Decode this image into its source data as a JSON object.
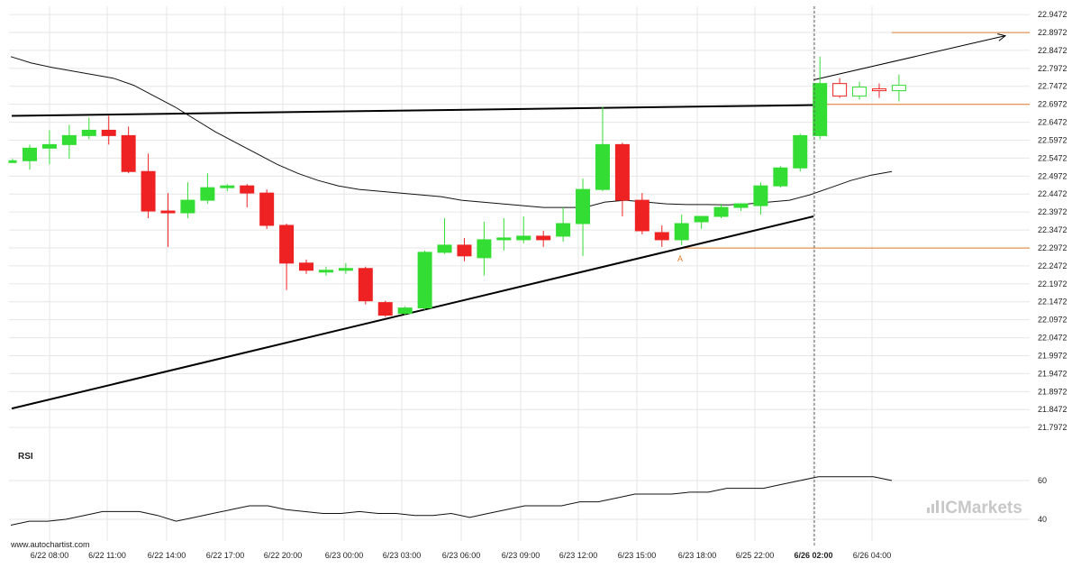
{
  "chart_data": {
    "type": "candlestick",
    "title": "",
    "y_ticks": [
      "22.9472",
      "22.8972",
      "22.8472",
      "22.7972",
      "22.7472",
      "22.6972",
      "22.6472",
      "22.5972",
      "22.5472",
      "22.4972",
      "22.4472",
      "22.3972",
      "22.3472",
      "22.2972",
      "22.2472",
      "22.1972",
      "22.1472",
      "22.0972",
      "22.0472",
      "21.9972",
      "21.9472",
      "21.8972",
      "21.8472",
      "21.7972"
    ],
    "ylim": [
      21.77,
      22.97
    ],
    "x_ticks": [
      "6/22 08:00",
      "6/22 11:00",
      "6/22 14:00",
      "6/22 17:00",
      "6/22 20:00",
      "6/23 00:00",
      "6/23 03:00",
      "6/23 06:00",
      "6/23 09:00",
      "6/23 12:00",
      "6/23 15:00",
      "6/23 18:00",
      "6/25 22:00",
      "6/26 02:00",
      "6/26 04:00"
    ],
    "x_ticks_bold": "6/26 02:00",
    "candles": [
      {
        "o": 22.54,
        "h": 22.545,
        "l": 22.535,
        "c": 22.54
      },
      {
        "o": 22.54,
        "h": 22.585,
        "l": 22.515,
        "c": 22.575
      },
      {
        "o": 22.575,
        "h": 22.625,
        "l": 22.53,
        "c": 22.585
      },
      {
        "o": 22.585,
        "h": 22.64,
        "l": 22.545,
        "c": 22.61
      },
      {
        "o": 22.61,
        "h": 22.66,
        "l": 22.6,
        "c": 22.625
      },
      {
        "o": 22.625,
        "h": 22.665,
        "l": 22.585,
        "c": 22.61
      },
      {
        "o": 22.61,
        "h": 22.635,
        "l": 22.505,
        "c": 22.51
      },
      {
        "o": 22.51,
        "h": 22.56,
        "l": 22.38,
        "c": 22.4
      },
      {
        "o": 22.4,
        "h": 22.45,
        "l": 22.3,
        "c": 22.395
      },
      {
        "o": 22.395,
        "h": 22.48,
        "l": 22.38,
        "c": 22.43
      },
      {
        "o": 22.43,
        "h": 22.505,
        "l": 22.42,
        "c": 22.465
      },
      {
        "o": 22.465,
        "h": 22.475,
        "l": 22.455,
        "c": 22.47
      },
      {
        "o": 22.47,
        "h": 22.475,
        "l": 22.41,
        "c": 22.45
      },
      {
        "o": 22.45,
        "h": 22.46,
        "l": 22.35,
        "c": 22.36
      },
      {
        "o": 22.36,
        "h": 22.365,
        "l": 22.18,
        "c": 22.255
      },
      {
        "o": 22.255,
        "h": 22.265,
        "l": 22.225,
        "c": 22.235
      },
      {
        "o": 22.23,
        "h": 22.245,
        "l": 22.22,
        "c": 22.235
      },
      {
        "o": 22.235,
        "h": 22.255,
        "l": 22.225,
        "c": 22.24
      },
      {
        "o": 22.24,
        "h": 22.245,
        "l": 22.14,
        "c": 22.15
      },
      {
        "o": 22.145,
        "h": 22.15,
        "l": 22.105,
        "c": 22.11
      },
      {
        "o": 22.115,
        "h": 22.135,
        "l": 22.11,
        "c": 22.13
      },
      {
        "o": 22.13,
        "h": 22.29,
        "l": 22.125,
        "c": 22.285
      },
      {
        "o": 22.285,
        "h": 22.38,
        "l": 22.28,
        "c": 22.305
      },
      {
        "o": 22.305,
        "h": 22.325,
        "l": 22.26,
        "c": 22.275
      },
      {
        "o": 22.27,
        "h": 22.37,
        "l": 22.22,
        "c": 22.32
      },
      {
        "o": 22.32,
        "h": 22.38,
        "l": 22.29,
        "c": 22.325
      },
      {
        "o": 22.32,
        "h": 22.385,
        "l": 22.31,
        "c": 22.33
      },
      {
        "o": 22.33,
        "h": 22.345,
        "l": 22.3,
        "c": 22.32
      },
      {
        "o": 22.33,
        "h": 22.41,
        "l": 22.315,
        "c": 22.365
      },
      {
        "o": 22.365,
        "h": 22.49,
        "l": 22.275,
        "c": 22.46
      },
      {
        "o": 22.46,
        "h": 22.69,
        "l": 22.455,
        "c": 22.585
      },
      {
        "o": 22.585,
        "h": 22.59,
        "l": 22.385,
        "c": 22.43
      },
      {
        "o": 22.43,
        "h": 22.45,
        "l": 22.335,
        "c": 22.345
      },
      {
        "o": 22.34,
        "h": 22.36,
        "l": 22.3,
        "c": 22.32
      },
      {
        "o": 22.32,
        "h": 22.39,
        "l": 22.305,
        "c": 22.365
      },
      {
        "o": 22.37,
        "h": 22.385,
        "l": 22.35,
        "c": 22.385
      },
      {
        "o": 22.385,
        "h": 22.42,
        "l": 22.38,
        "c": 22.41
      },
      {
        "o": 22.41,
        "h": 22.42,
        "l": 22.4,
        "c": 22.42
      },
      {
        "o": 22.415,
        "h": 22.48,
        "l": 22.39,
        "c": 22.47
      },
      {
        "o": 22.47,
        "h": 22.525,
        "l": 22.465,
        "c": 22.52
      },
      {
        "o": 22.52,
        "h": 22.615,
        "l": 22.51,
        "c": 22.61
      },
      {
        "o": 22.61,
        "h": 22.83,
        "l": 22.6,
        "c": 22.755
      },
      {
        "o": 22.755,
        "h": 22.77,
        "l": 22.715,
        "c": 22.72
      },
      {
        "o": 22.72,
        "h": 22.76,
        "l": 22.71,
        "c": 22.745
      },
      {
        "o": 22.74,
        "h": 22.755,
        "l": 22.715,
        "c": 22.735
      },
      {
        "o": 22.735,
        "h": 22.78,
        "l": 22.705,
        "c": 22.75
      }
    ],
    "moving_average": [
      22.83,
      22.812,
      22.8,
      22.79,
      22.78,
      22.77,
      22.75,
      22.72,
      22.69,
      22.655,
      22.62,
      22.59,
      22.56,
      22.53,
      22.505,
      22.485,
      22.47,
      22.46,
      22.455,
      22.45,
      22.445,
      22.44,
      22.43,
      22.425,
      22.42,
      22.415,
      22.41,
      22.41,
      22.41,
      22.425,
      22.43,
      22.425,
      22.42,
      22.418,
      22.418,
      22.417,
      22.42,
      22.425,
      22.43,
      22.445,
      22.465,
      22.485,
      22.5,
      22.51
    ],
    "resistance_line": [
      [
        0,
        22.665
      ],
      [
        41,
        22.695
      ]
    ],
    "support_line": [
      [
        0,
        21.85
      ],
      [
        41,
        22.385
      ]
    ],
    "levels": [
      22.897,
      22.697,
      22.297
    ],
    "projection": [
      [
        41,
        22.765
      ],
      [
        50,
        22.888
      ]
    ],
    "marker_label": "A",
    "rsi": {
      "label": "RSI",
      "y_ticks": [
        "60",
        "40"
      ],
      "ylim": [
        35,
        70
      ],
      "values": [
        37,
        39,
        39,
        40,
        42,
        44,
        44,
        44,
        42,
        39,
        41,
        43,
        45,
        47,
        47,
        45,
        44,
        43,
        43,
        44,
        43,
        43,
        42,
        42,
        43,
        41,
        43,
        45,
        47,
        47,
        47,
        49,
        49,
        51,
        53,
        53,
        53,
        54,
        54,
        56,
        56,
        56,
        58,
        60,
        62,
        62,
        62,
        62,
        60
      ]
    },
    "colors": {
      "up": "#33dd33",
      "down": "#ee2222",
      "level": "#e07b2a",
      "ma": "#111111",
      "trend": "#000000",
      "rsi": "#111111",
      "grid": "#e6e6e6"
    }
  },
  "footer": {
    "source": "www.autochartist.com",
    "brand": "ICMarkets"
  }
}
